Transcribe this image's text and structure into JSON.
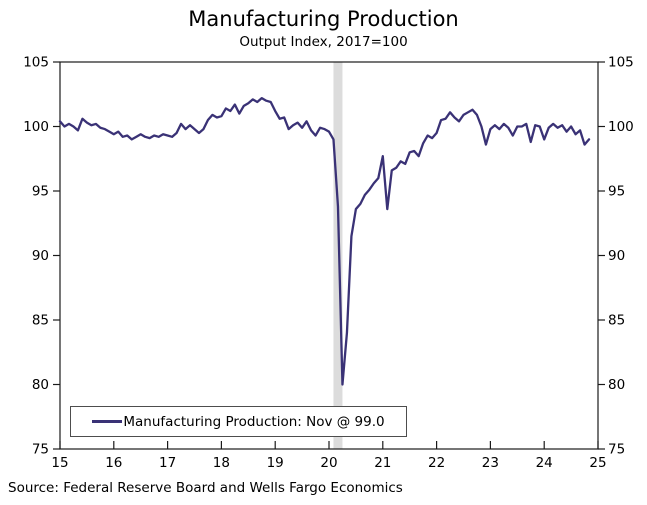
{
  "header": {
    "title": "Manufacturing Production",
    "subtitle": "Output Index, 2017=100"
  },
  "legend": {
    "label": "Manufacturing Production: Nov @ 99.0"
  },
  "footer": {
    "source": "Source: Federal Reserve Board and Wells Fargo Economics"
  },
  "colors": {
    "line": "#3A3276",
    "recession_band": "#DCDCDC",
    "axis": "#1A1A1A",
    "legend_border": "#4D4D4D",
    "text": "#000000"
  },
  "chart_data": {
    "type": "line",
    "title": "Manufacturing Production",
    "subtitle": "Output Index, 2017=100",
    "xlabel": "",
    "ylabel": "Output Index, 2017=100",
    "x_start": 2015.0,
    "x_end": 2025.0,
    "ylim": [
      75,
      105
    ],
    "yticks": [
      75,
      80,
      85,
      90,
      95,
      100,
      105
    ],
    "xtick_years": [
      2015,
      2016,
      2017,
      2018,
      2019,
      2020,
      2021,
      2022,
      2023,
      2024,
      2025
    ],
    "xtick_labels": [
      "15",
      "16",
      "17",
      "18",
      "19",
      "20",
      "21",
      "22",
      "23",
      "24",
      "25"
    ],
    "grid": false,
    "legend_position": "inside-bottom-left",
    "recession_band": {
      "start_year": 2020.083,
      "end_year": 2020.25,
      "note": "Feb-Apr 2020 recession shading"
    },
    "series": [
      {
        "name": "Manufacturing Production",
        "frequency": "monthly",
        "start": "2015-01",
        "end": "2024-11",
        "last_point_label": "Nov @ 99.0",
        "values": [
          100.4,
          100.0,
          100.2,
          100.0,
          99.7,
          100.6,
          100.3,
          100.1,
          100.2,
          99.9,
          99.8,
          99.6,
          99.4,
          99.6,
          99.2,
          99.3,
          99.0,
          99.2,
          99.4,
          99.2,
          99.1,
          99.3,
          99.2,
          99.4,
          99.3,
          99.2,
          99.5,
          100.2,
          99.8,
          100.1,
          99.8,
          99.5,
          99.8,
          100.5,
          100.9,
          100.7,
          100.8,
          101.4,
          101.2,
          101.7,
          101.0,
          101.6,
          101.8,
          102.1,
          101.9,
          102.2,
          102.0,
          101.9,
          101.2,
          100.6,
          100.7,
          99.8,
          100.1,
          100.3,
          99.9,
          100.4,
          99.7,
          99.3,
          99.9,
          99.8,
          99.6,
          99.0,
          93.8,
          80.0,
          84.0,
          91.5,
          93.6,
          94.0,
          94.7,
          95.1,
          95.6,
          96.0,
          97.7,
          93.6,
          96.6,
          96.8,
          97.3,
          97.1,
          98.0,
          98.1,
          97.7,
          98.7,
          99.3,
          99.1,
          99.5,
          100.5,
          100.6,
          101.1,
          100.7,
          100.4,
          100.9,
          101.1,
          101.3,
          100.9,
          100.0,
          98.6,
          99.8,
          100.1,
          99.8,
          100.2,
          99.9,
          99.3,
          100.0,
          100.0,
          100.2,
          98.8,
          100.1,
          100.0,
          99.0,
          99.9,
          100.2,
          99.9,
          100.1,
          99.6,
          100.0,
          99.4,
          99.7,
          98.6,
          99.0
        ]
      }
    ]
  }
}
